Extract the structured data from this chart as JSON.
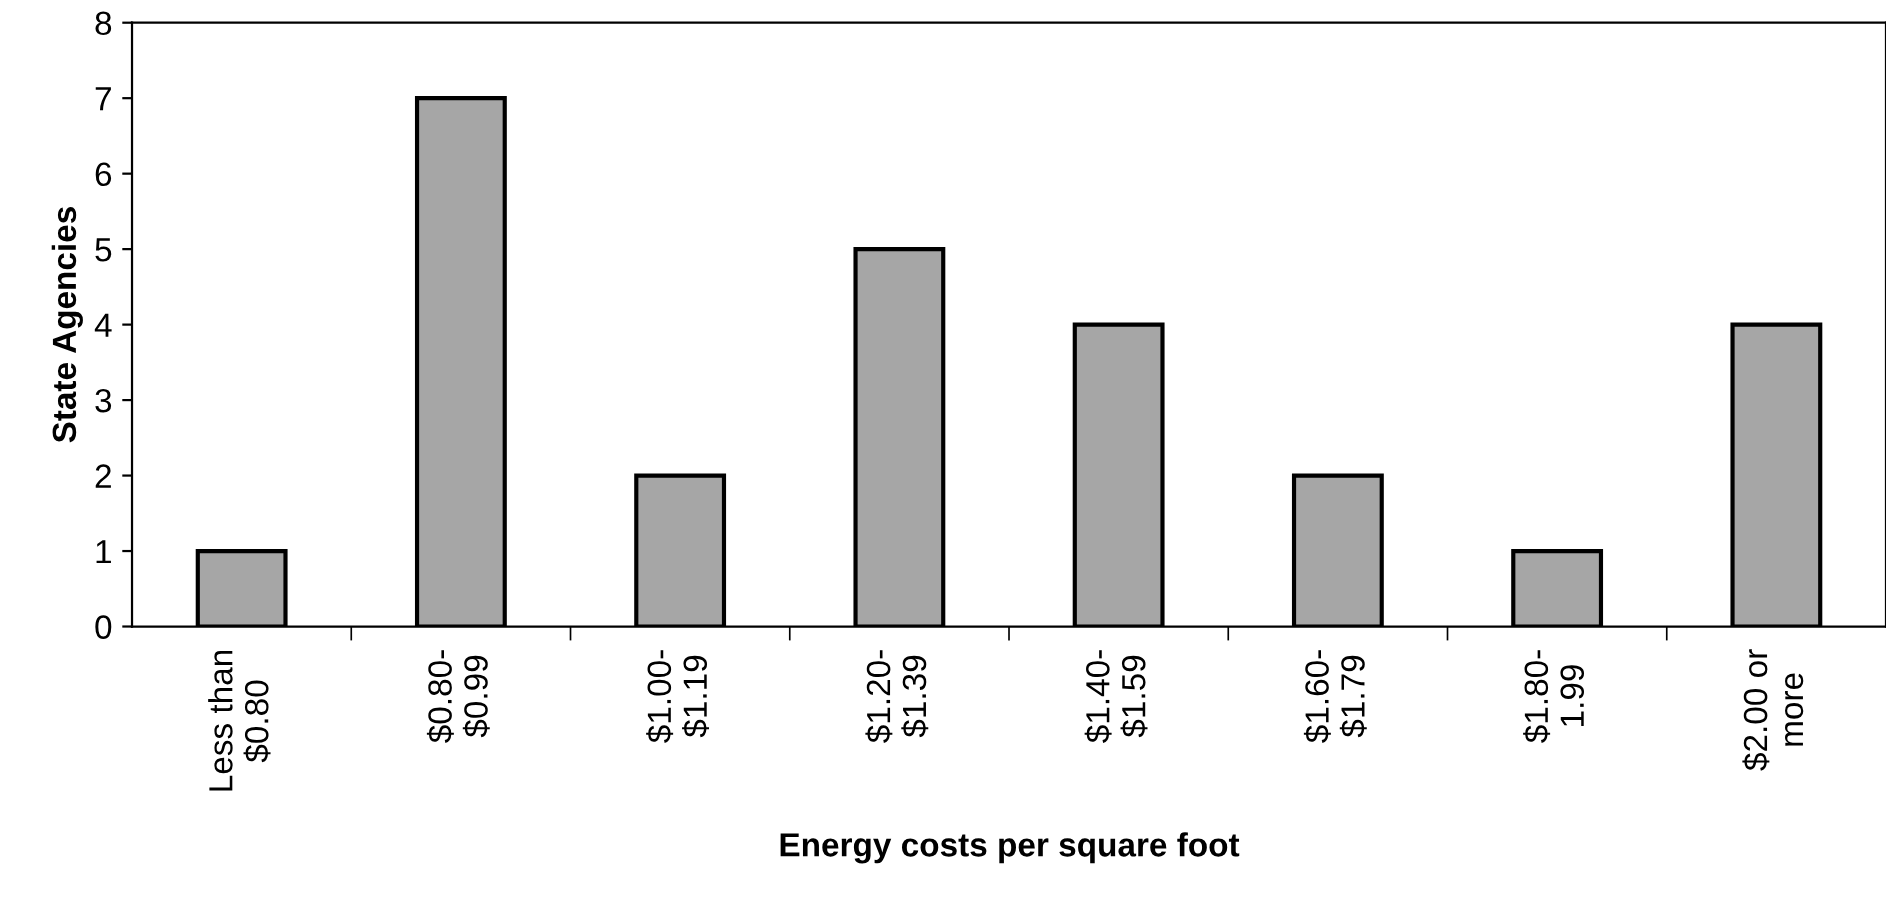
{
  "chart_data": {
    "type": "bar",
    "xlabel": "Energy costs per square foot",
    "ylabel": "State Agencies",
    "categories": [
      "Less than\n$0.80",
      "$0.80-\n$0.99",
      "$1.00-\n$1.19",
      "$1.20-\n$1.39",
      "$1.40-\n$1.59",
      "$1.60-\n$1.79",
      "$1.80-\n1.99",
      "$2.00 or\nmore"
    ],
    "values": [
      1,
      7,
      2,
      5,
      4,
      2,
      1,
      4
    ],
    "color": "#a6a6a6",
    "ylim": [
      0,
      8
    ],
    "yticks": [
      0,
      1,
      2,
      3,
      4,
      5,
      6,
      7,
      8
    ],
    "grid": false
  }
}
